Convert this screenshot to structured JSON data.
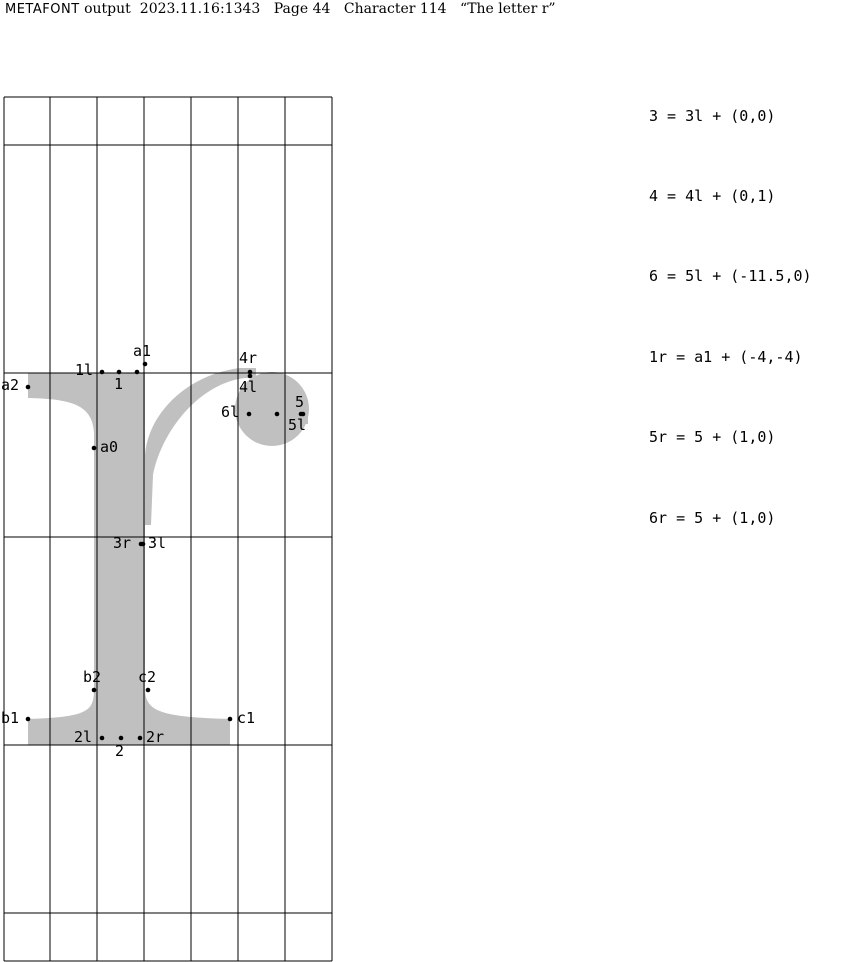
{
  "header": {
    "program": "METAFONT",
    "output_label": "output",
    "timestamp": "2023.11.16:1343",
    "page": "Page 44",
    "character": "Character 114",
    "title": "“The letter r”"
  },
  "equations": [
    "3 = 3l + (0,0)",
    "4 = 4l + (0,1)",
    "6 = 5l + (-11.5,0)",
    "1r = a1 + (-4,-4)",
    "5r = 5 + (1,0)",
    "6r = 5 + (1,0)"
  ],
  "points": [
    {
      "name": "a1",
      "label": "a1"
    },
    {
      "name": "1l",
      "label": "1l"
    },
    {
      "name": "1",
      "label": "1"
    },
    {
      "name": "1r",
      "label": ""
    },
    {
      "name": "a2",
      "label": "a2"
    },
    {
      "name": "a0",
      "label": "a0"
    },
    {
      "name": "4r",
      "label": "4r"
    },
    {
      "name": "4l",
      "label": "4l"
    },
    {
      "name": "6l",
      "label": "6l"
    },
    {
      "name": "6",
      "label": ""
    },
    {
      "name": "5",
      "label": "5"
    },
    {
      "name": "5l",
      "label": "5l"
    },
    {
      "name": "3r",
      "label": "3r"
    },
    {
      "name": "3l",
      "label": "3l"
    },
    {
      "name": "b2",
      "label": "b2"
    },
    {
      "name": "c2",
      "label": "c2"
    },
    {
      "name": "b1",
      "label": "b1"
    },
    {
      "name": "c1",
      "label": "c1"
    },
    {
      "name": "2l",
      "label": "2l"
    },
    {
      "name": "2",
      "label": "2"
    },
    {
      "name": "2r",
      "label": "2r"
    }
  ],
  "colors": {
    "glyph_fill": "#c0c0c0",
    "grid_line": "#000000",
    "dot": "#000000"
  }
}
